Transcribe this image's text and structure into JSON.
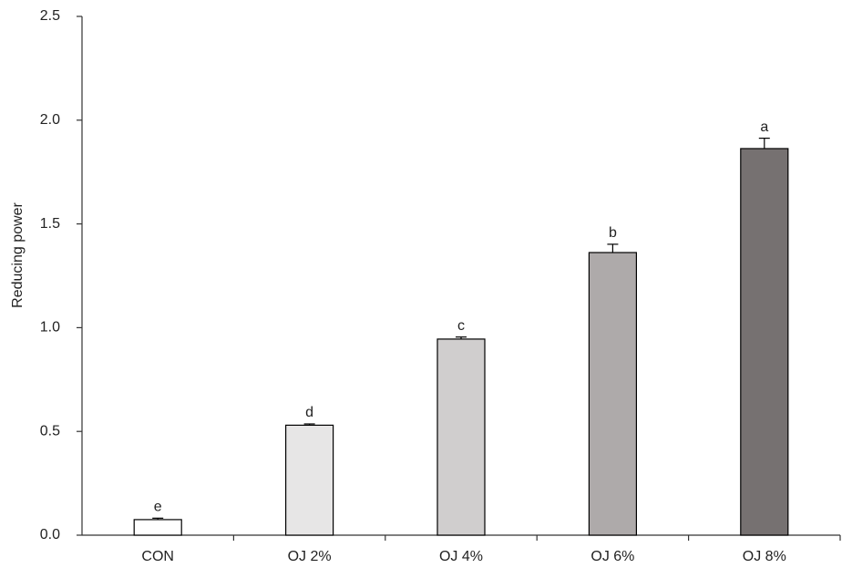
{
  "chart_data": {
    "type": "bar",
    "y_label": "Reducing power",
    "categories": [
      "CON",
      "OJ 2%",
      "OJ 4%",
      "OJ 6%",
      "OJ 8%"
    ],
    "values": [
      0.075,
      0.53,
      0.945,
      1.362,
      1.863
    ],
    "errors": [
      0.007,
      0.006,
      0.01,
      0.04,
      0.05
    ],
    "annotations": [
      "e",
      "d",
      "c",
      "b",
      "a"
    ],
    "colors": [
      "#ffffff",
      "#e7e6e6",
      "#d0cece",
      "#aeaaaa",
      "#767171"
    ],
    "ylim": [
      0,
      2.5
    ],
    "yticks": [
      {
        "value": 0,
        "label": "0.0"
      },
      0.5,
      {
        "value": 1,
        "label": "1.0"
      },
      1.5,
      {
        "value": 2,
        "label": "2.0"
      },
      2.5
    ],
    "grid": false
  }
}
